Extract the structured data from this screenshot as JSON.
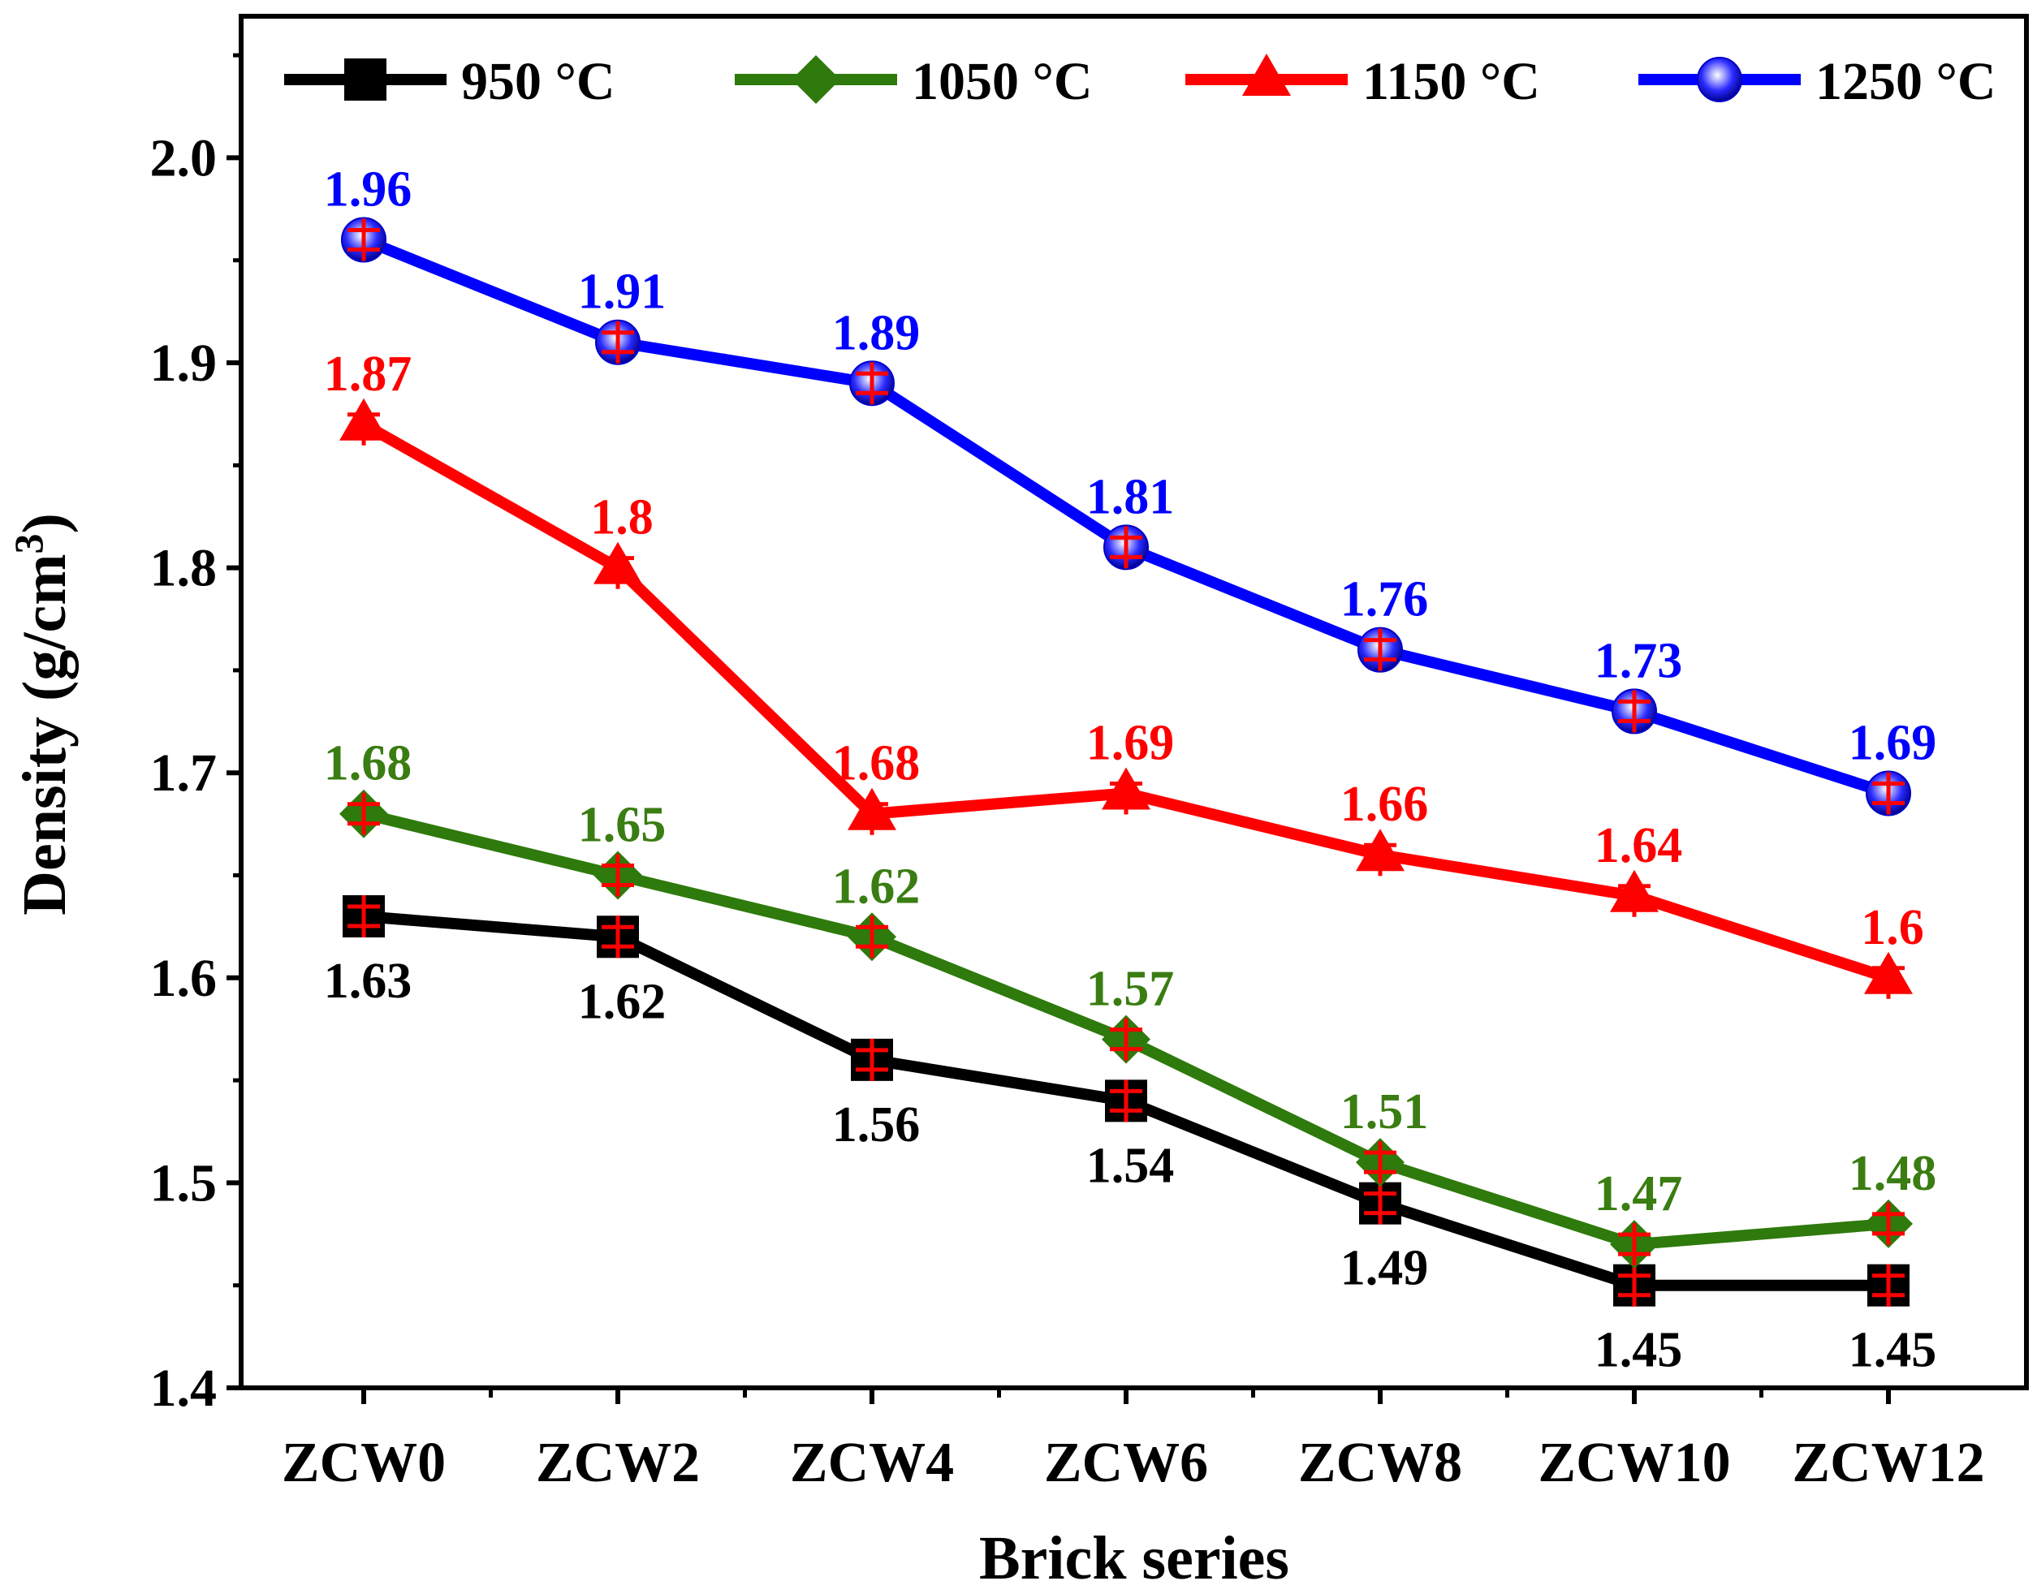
{
  "chart_data": {
    "type": "line",
    "title": "",
    "xlabel": "Brick series",
    "ylabel_main": "Density (g/cm",
    "ylabel_sup": "3",
    "ylabel_close": ")",
    "ylim": [
      1.4,
      2.05
    ],
    "yticks": [
      "1.4",
      "1.5",
      "1.6",
      "1.7",
      "1.8",
      "1.9",
      "2.0"
    ],
    "categories": [
      "ZCW0",
      "ZCW2",
      "ZCW4",
      "ZCW6",
      "ZCW8",
      "ZCW10",
      "ZCW12"
    ],
    "legend_position": "top",
    "series": [
      {
        "name": "950 °C",
        "marker": "square",
        "color": "#000000",
        "label_color": "#000000",
        "label_placement": "below",
        "values": [
          1.63,
          1.62,
          1.56,
          1.54,
          1.49,
          1.45,
          1.45
        ],
        "labels": [
          "1.63",
          "1.62",
          "1.56",
          "1.54",
          "1.49",
          "1.45",
          "1.45"
        ]
      },
      {
        "name": "1050 °C",
        "marker": "diamond",
        "color": "#2e7a0c",
        "label_color": "#3a7d12",
        "label_placement": "above",
        "values": [
          1.68,
          1.65,
          1.62,
          1.57,
          1.51,
          1.47,
          1.48
        ],
        "labels": [
          "1.68",
          "1.65",
          "1.62",
          "1.57",
          "1.51",
          "1.47",
          "1.48"
        ]
      },
      {
        "name": "1150 °C",
        "marker": "triangle",
        "color": "#ff0000",
        "label_color": "#ff0000",
        "label_placement": "above",
        "values": [
          1.87,
          1.8,
          1.68,
          1.69,
          1.66,
          1.64,
          1.6
        ],
        "labels": [
          "1.87",
          "1.8",
          "1.68",
          "1.69",
          "1.66",
          "1.64",
          "1.6"
        ]
      },
      {
        "name": "1250 °C",
        "marker": "sphere",
        "color": "#0000ff",
        "label_color": "#0000ff",
        "label_placement": "above",
        "values": [
          1.96,
          1.91,
          1.89,
          1.81,
          1.76,
          1.73,
          1.69
        ],
        "labels": [
          "1.96",
          "1.91",
          "1.89",
          "1.81",
          "1.76",
          "1.73",
          "1.69"
        ]
      }
    ],
    "error_bar_color": "#ff0000"
  }
}
